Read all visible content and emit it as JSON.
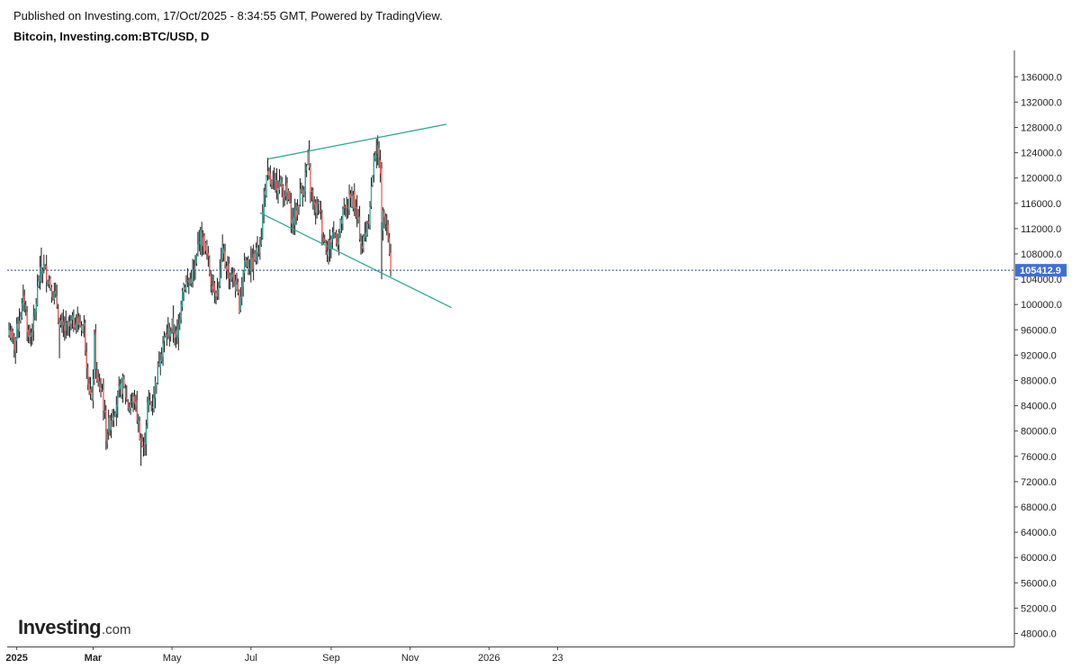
{
  "header": {
    "published": "Published on Investing.com, 17/Oct/2025 - 8:34:55 GMT, Powered by TradingView.",
    "symbol": "Bitcoin, Investing.com:BTC/USD, D"
  },
  "logo": {
    "main": "Investing",
    "suffix": ".com"
  },
  "colors": {
    "up": "#26a69a",
    "down": "#ef5350",
    "wick": "#1a1a1a",
    "trendline": "#2aa58f",
    "price_line": "#1f4e8c",
    "price_label_bg": "#3d6fd8",
    "axis": "#444444"
  },
  "chart_data": {
    "type": "candlestick",
    "title": "Bitcoin, Investing.com:BTC/USD, D",
    "interval": "D",
    "ylim": [
      45000,
      140000
    ],
    "y_ticks": [
      48000,
      52000,
      56000,
      60000,
      64000,
      68000,
      72000,
      76000,
      80000,
      84000,
      88000,
      92000,
      96000,
      100000,
      104000,
      108000,
      112000,
      116000,
      120000,
      124000,
      128000,
      132000,
      136000
    ],
    "y_tick_labels": [
      "48000.0",
      "52000.0",
      "56000.0",
      "60000.0",
      "64000.0",
      "68000.0",
      "72000.0",
      "76000.0",
      "80000.0",
      "84000.0",
      "88000.0",
      "92000.0",
      "96000.0",
      "100000.0",
      "104000.0",
      "108000.0",
      "112000.0",
      "116000.0",
      "120000.0",
      "124000.0",
      "128000.0",
      "132000.0",
      "136000.0"
    ],
    "x_tick_labels": [
      "2025",
      "Mar",
      "May",
      "Jul",
      "Sep",
      "Nov",
      "2026",
      "23"
    ],
    "x_tick_dates": [
      "2025-01-01",
      "2025-03-01",
      "2025-05-01",
      "2025-07-01",
      "2025-09-01",
      "2025-11-01",
      "2026-01-01",
      "2026-02-23"
    ],
    "date_range": [
      "2024-12-26",
      "2025-10-17"
    ],
    "last_price": 105412.9,
    "last_price_label": "105412.9",
    "close_path": [
      [
        "2024-12-26",
        96000
      ],
      [
        "2024-12-30",
        93500
      ],
      [
        "2025-01-03",
        98000
      ],
      [
        "2025-01-07",
        101000
      ],
      [
        "2025-01-10",
        94500
      ],
      [
        "2025-01-14",
        97000
      ],
      [
        "2025-01-18",
        104000
      ],
      [
        "2025-01-21",
        106000
      ],
      [
        "2025-01-25",
        104500
      ],
      [
        "2025-01-28",
        102500
      ],
      [
        "2025-02-01",
        100000
      ],
      [
        "2025-02-03",
        96500
      ],
      [
        "2025-02-08",
        96000
      ],
      [
        "2025-02-15",
        97500
      ],
      [
        "2025-02-22",
        96500
      ],
      [
        "2025-02-25",
        88500
      ],
      [
        "2025-02-28",
        84000
      ],
      [
        "2025-03-02",
        94000
      ],
      [
        "2025-03-04",
        87500
      ],
      [
        "2025-03-08",
        86500
      ],
      [
        "2025-03-11",
        79500
      ],
      [
        "2025-03-17",
        83500
      ],
      [
        "2025-03-24",
        87500
      ],
      [
        "2025-03-28",
        84000
      ],
      [
        "2025-04-02",
        85000
      ],
      [
        "2025-04-07",
        78500
      ],
      [
        "2025-04-09",
        76800
      ],
      [
        "2025-04-12",
        84000
      ],
      [
        "2025-04-16",
        84500
      ],
      [
        "2025-04-22",
        92500
      ],
      [
        "2025-04-25",
        94500
      ],
      [
        "2025-05-01",
        96500
      ],
      [
        "2025-05-05",
        94500
      ],
      [
        "2025-05-09",
        103000
      ],
      [
        "2025-05-14",
        103500
      ],
      [
        "2025-05-19",
        105500
      ],
      [
        "2025-05-22",
        111000
      ],
      [
        "2025-05-27",
        109000
      ],
      [
        "2025-05-31",
        104000
      ],
      [
        "2025-06-05",
        102000
      ],
      [
        "2025-06-09",
        108000
      ],
      [
        "2025-06-14",
        105000
      ],
      [
        "2025-06-18",
        104000
      ],
      [
        "2025-06-22",
        100000
      ],
      [
        "2025-06-26",
        107000
      ],
      [
        "2025-07-01",
        106000
      ],
      [
        "2025-07-05",
        108000
      ],
      [
        "2025-07-09",
        111000
      ],
      [
        "2025-07-11",
        117500
      ],
      [
        "2025-07-14",
        120000
      ],
      [
        "2025-07-18",
        118500
      ],
      [
        "2025-07-22",
        119500
      ],
      [
        "2025-07-26",
        118000
      ],
      [
        "2025-07-29",
        117500
      ],
      [
        "2025-08-02",
        113000
      ],
      [
        "2025-08-05",
        114500
      ],
      [
        "2025-08-08",
        117500
      ],
      [
        "2025-08-11",
        119000
      ],
      [
        "2025-08-14",
        123000
      ],
      [
        "2025-08-16",
        118500
      ],
      [
        "2025-08-19",
        115000
      ],
      [
        "2025-08-23",
        115500
      ],
      [
        "2025-08-26",
        110500
      ],
      [
        "2025-08-30",
        108500
      ],
      [
        "2025-09-02",
        111500
      ],
      [
        "2025-09-06",
        110500
      ],
      [
        "2025-09-10",
        114000
      ],
      [
        "2025-09-14",
        116000
      ],
      [
        "2025-09-18",
        117000
      ],
      [
        "2025-09-22",
        112500
      ],
      [
        "2025-09-25",
        109000
      ],
      [
        "2025-09-30",
        114000
      ],
      [
        "2025-10-03",
        120500
      ],
      [
        "2025-10-05",
        124500
      ],
      [
        "2025-10-07",
        124000
      ],
      [
        "2025-10-09",
        121500
      ],
      [
        "2025-10-10",
        113000
      ],
      [
        "2025-10-12",
        115000
      ],
      [
        "2025-10-14",
        113000
      ],
      [
        "2025-10-16",
        108500
      ],
      [
        "2025-10-17",
        105412.9
      ]
    ],
    "annotations": [
      {
        "type": "trendline",
        "name": "upper channel line",
        "from": [
          "2025-07-14",
          123000
        ],
        "to": [
          "2025-11-29",
          128500
        ]
      },
      {
        "type": "trendline",
        "name": "lower channel line",
        "from": [
          "2025-07-08",
          114500
        ],
        "to": [
          "2025-12-03",
          99500
        ]
      }
    ]
  }
}
